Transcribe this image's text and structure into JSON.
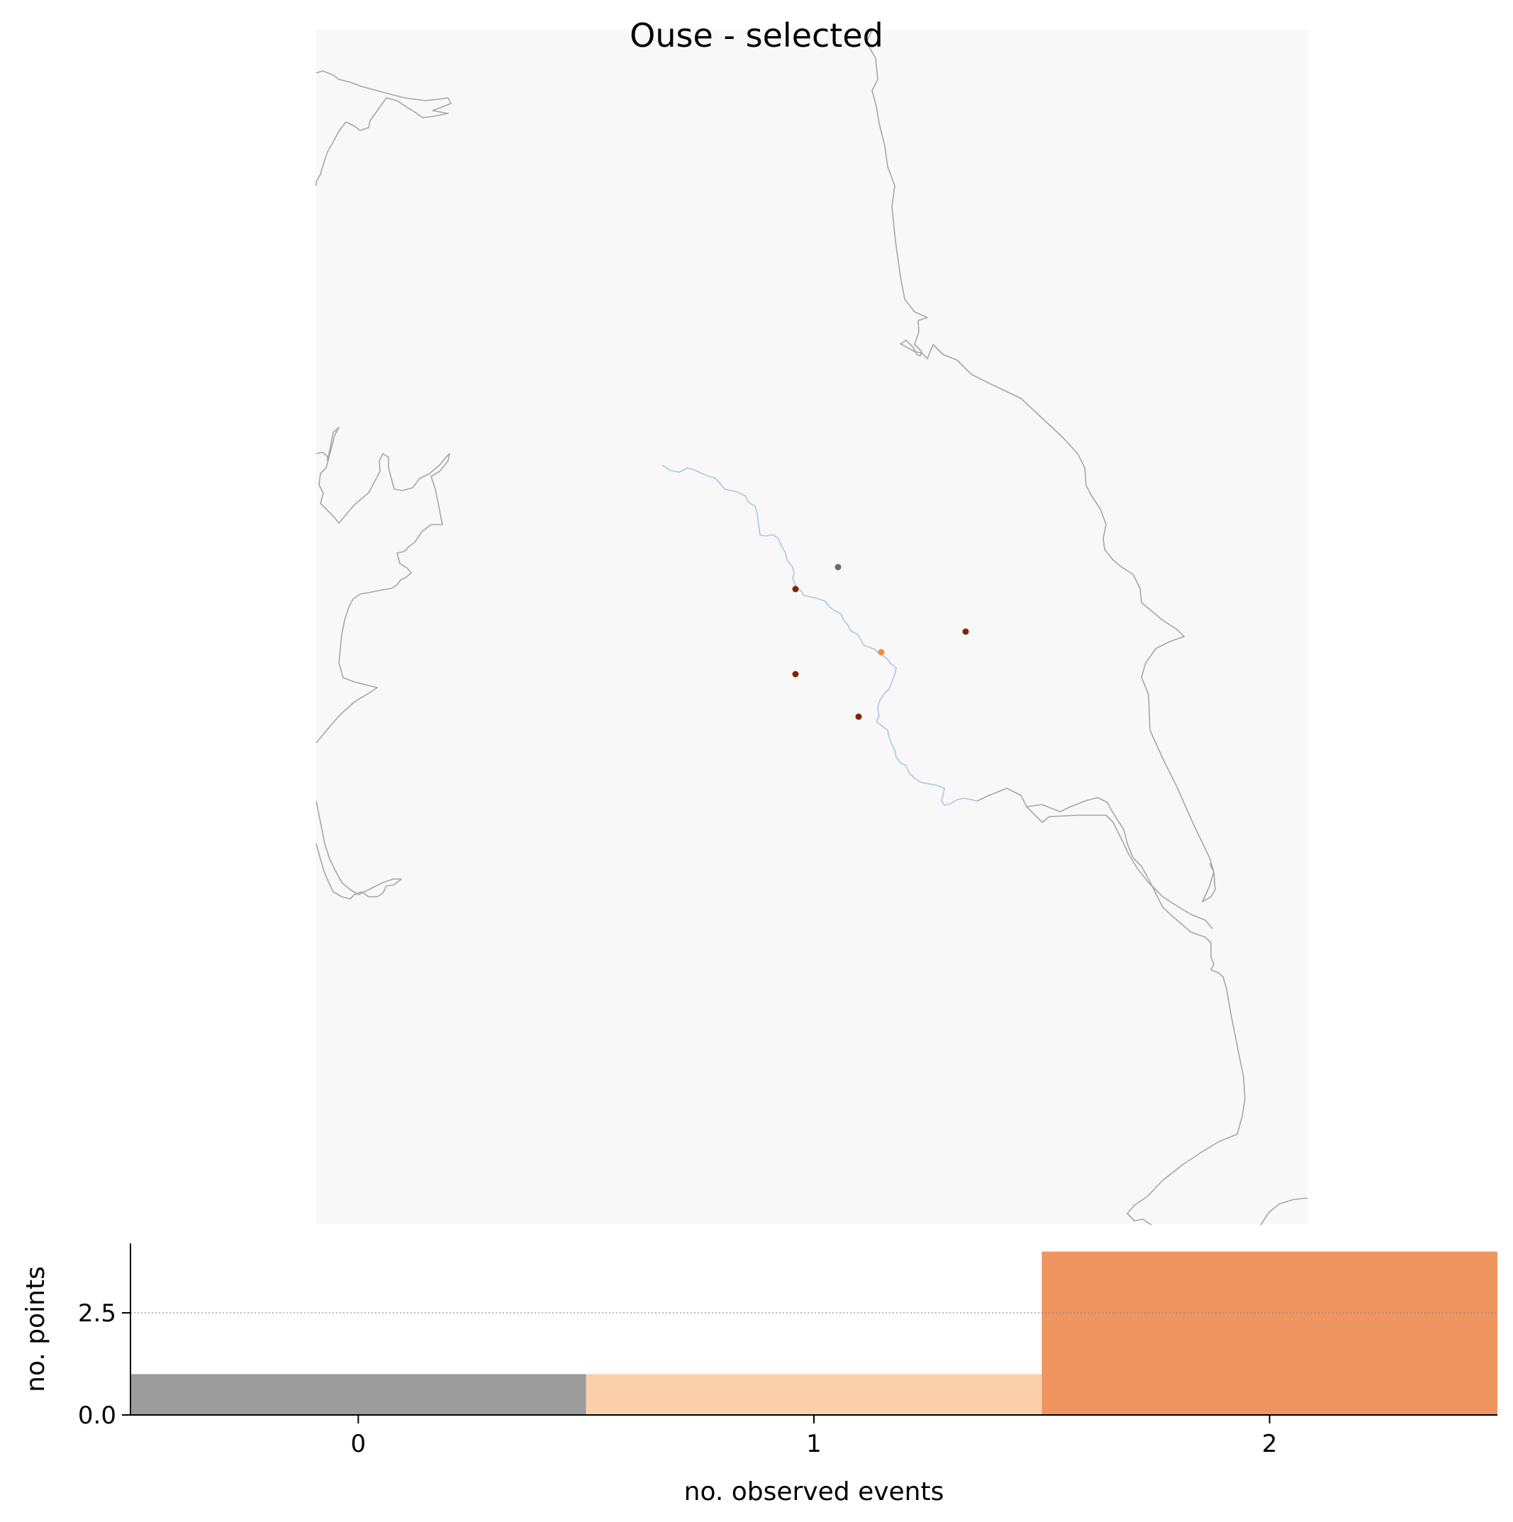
{
  "chart_data": [
    {
      "type": "map",
      "title": "Ouse - selected",
      "colors": {
        "land": "#f8f8f8",
        "coastline": "#a6a6a6",
        "river": "#a8c6e6"
      },
      "points": [
        {
          "observed_events": 0,
          "color": "#6e6e6e"
        },
        {
          "observed_events": 1,
          "color": "#f98b3b"
        },
        {
          "observed_events": 2,
          "color": "#7f2704"
        },
        {
          "observed_events": 2,
          "color": "#7f2704"
        },
        {
          "observed_events": 2,
          "color": "#7f2704"
        },
        {
          "observed_events": 2,
          "color": "#7f2704"
        }
      ]
    },
    {
      "type": "bar",
      "xlabel": "no. observed events",
      "ylabel": "no. points",
      "categories": [
        "0",
        "1",
        "2"
      ],
      "values": [
        1,
        1,
        4
      ],
      "colors": [
        "#9c9c9c",
        "#fbd0aa",
        "#ef9560"
      ],
      "ylim": [
        0,
        4.2
      ],
      "yticks": [
        "0.0",
        "2.5"
      ],
      "gridline_y": 2.5,
      "grid": "horizontal dotted at 2.5"
    }
  ]
}
